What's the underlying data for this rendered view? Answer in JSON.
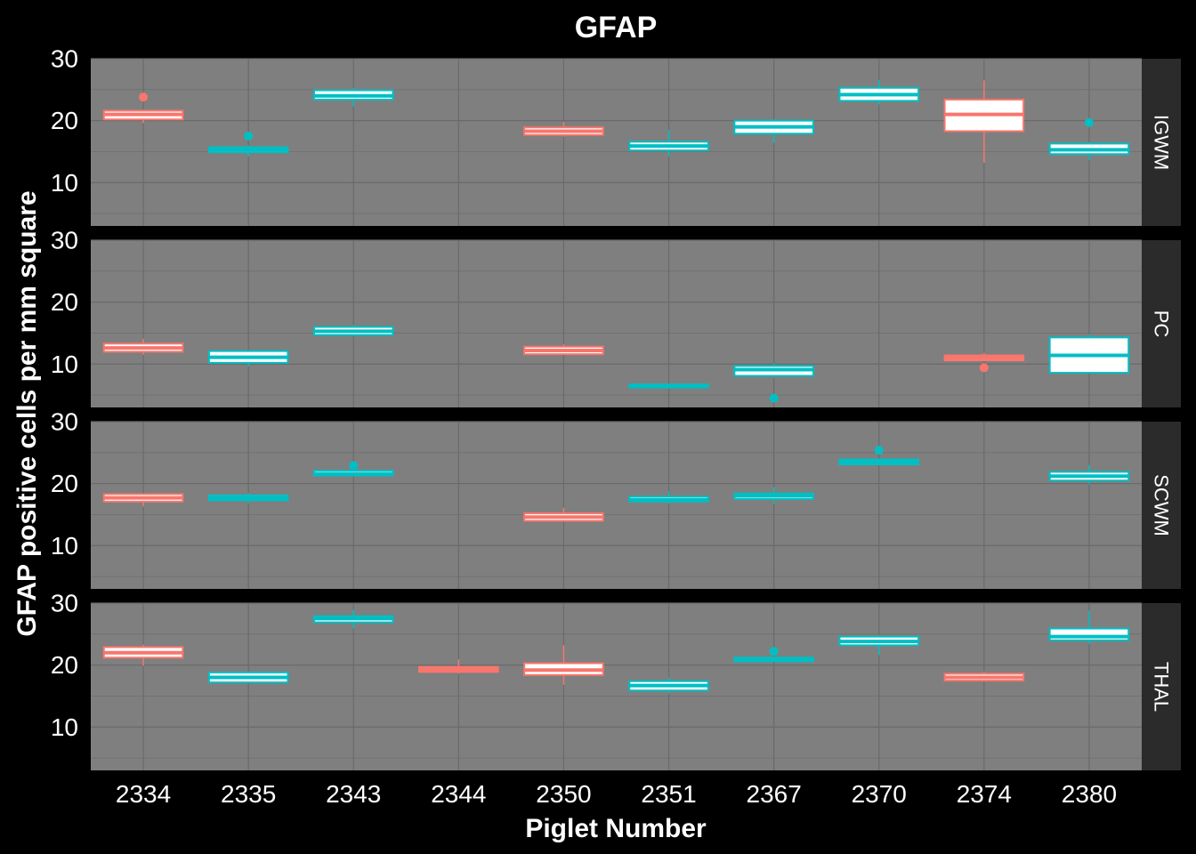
{
  "colors": {
    "page_background": "#000000",
    "panel_background": "#7f7f7f",
    "grid": "#6a6a6a",
    "strip_background": "#2b2b2b",
    "salmon": "#f8766d",
    "teal": "#00bfc4",
    "box_fill": "#ffffff"
  },
  "chart_data": {
    "type": "box",
    "title": "GFAP",
    "xlabel": "Piglet Number",
    "ylabel": "GFAP positive cells per mm square",
    "categories": [
      "2334",
      "2335",
      "2343",
      "2344",
      "2350",
      "2351",
      "2367",
      "2370",
      "2374",
      "2380"
    ],
    "ylim": [
      3,
      30
    ],
    "yticks": [
      10,
      20,
      30
    ],
    "grid": true,
    "facets": [
      {
        "label": "IGWM",
        "boxes": [
          {
            "category": "2334",
            "color": "salmon",
            "q1": 20.2,
            "median": 21.0,
            "q3": 21.6,
            "whisker_low": 19.6,
            "whisker_high": 21.8,
            "outliers": [
              23.8
            ]
          },
          {
            "category": "2335",
            "color": "teal",
            "q1": 14.9,
            "median": 15.3,
            "q3": 15.7,
            "whisker_low": 14.2,
            "whisker_high": 16.0,
            "outliers": [
              17.5
            ]
          },
          {
            "category": "2343",
            "color": "teal",
            "q1": 23.4,
            "median": 24.0,
            "q3": 24.9,
            "whisker_low": 22.3,
            "whisker_high": 25.3,
            "outliers": []
          },
          {
            "category": "2350",
            "color": "salmon",
            "q1": 17.7,
            "median": 18.3,
            "q3": 18.9,
            "whisker_low": 17.4,
            "whisker_high": 19.8,
            "outliers": []
          },
          {
            "category": "2351",
            "color": "teal",
            "q1": 15.2,
            "median": 15.9,
            "q3": 16.6,
            "whisker_low": 14.2,
            "whisker_high": 18.5,
            "outliers": []
          },
          {
            "category": "2367",
            "color": "teal",
            "q1": 17.9,
            "median": 19.0,
            "q3": 20.0,
            "whisker_low": 16.4,
            "whisker_high": 20.2,
            "outliers": []
          },
          {
            "category": "2370",
            "color": "teal",
            "q1": 23.2,
            "median": 24.2,
            "q3": 25.3,
            "whisker_low": 22.6,
            "whisker_high": 26.6,
            "outliers": []
          },
          {
            "category": "2374",
            "color": "salmon",
            "q1": 18.3,
            "median": 21.0,
            "q3": 23.4,
            "whisker_low": 13.2,
            "whisker_high": 26.5,
            "outliers": []
          },
          {
            "category": "2380",
            "color": "teal",
            "q1": 14.6,
            "median": 15.3,
            "q3": 16.3,
            "whisker_low": 13.6,
            "whisker_high": 16.5,
            "outliers": [
              19.7
            ]
          }
        ]
      },
      {
        "label": "PC",
        "boxes": [
          {
            "category": "2334",
            "color": "salmon",
            "q1": 12.0,
            "median": 12.6,
            "q3": 13.3,
            "whisker_low": 11.5,
            "whisker_high": 14.1,
            "outliers": []
          },
          {
            "category": "2335",
            "color": "teal",
            "q1": 10.2,
            "median": 11.1,
            "q3": 12.1,
            "whisker_low": 9.6,
            "whisker_high": 12.2,
            "outliers": []
          },
          {
            "category": "2343",
            "color": "teal",
            "q1": 14.7,
            "median": 15.3,
            "q3": 16.0,
            "whisker_low": 14.5,
            "whisker_high": 16.3,
            "outliers": []
          },
          {
            "category": "2350",
            "color": "salmon",
            "q1": 11.6,
            "median": 12.2,
            "q3": 12.8,
            "whisker_low": 11.6,
            "whisker_high": 13.2,
            "outliers": []
          },
          {
            "category": "2351",
            "color": "teal",
            "q1": 6.2,
            "median": 6.5,
            "q3": 6.7,
            "whisker_low": 6.2,
            "whisker_high": 6.8,
            "outliers": []
          },
          {
            "category": "2367",
            "color": "teal",
            "q1": 8.1,
            "median": 9.1,
            "q3": 9.7,
            "whisker_low": 7.8,
            "whisker_high": 10.1,
            "outliers": [
              4.5
            ]
          },
          {
            "category": "2374",
            "color": "salmon",
            "q1": 10.6,
            "median": 11.0,
            "q3": 11.4,
            "whisker_low": 10.5,
            "whisker_high": 11.8,
            "outliers": [
              9.4
            ]
          },
          {
            "category": "2380",
            "color": "teal",
            "q1": 8.6,
            "median": 11.4,
            "q3": 14.3,
            "whisker_low": 8.6,
            "whisker_high": 14.8,
            "outliers": []
          }
        ]
      },
      {
        "label": "SCWM",
        "boxes": [
          {
            "category": "2334",
            "color": "salmon",
            "q1": 17.1,
            "median": 17.7,
            "q3": 18.3,
            "whisker_low": 16.3,
            "whisker_high": 18.4,
            "outliers": []
          },
          {
            "category": "2335",
            "color": "teal",
            "q1": 17.3,
            "median": 17.7,
            "q3": 18.1,
            "whisker_low": 16.8,
            "whisker_high": 18.5,
            "outliers": []
          },
          {
            "category": "2343",
            "color": "teal",
            "q1": 21.3,
            "median": 21.6,
            "q3": 22.1,
            "whisker_low": 21.2,
            "whisker_high": 22.3,
            "outliers": [
              22.9
            ]
          },
          {
            "category": "2350",
            "color": "salmon",
            "q1": 14.0,
            "median": 14.6,
            "q3": 15.2,
            "whisker_low": 13.9,
            "whisker_high": 16.1,
            "outliers": []
          },
          {
            "category": "2351",
            "color": "teal",
            "q1": 17.1,
            "median": 17.4,
            "q3": 17.9,
            "whisker_low": 16.8,
            "whisker_high": 18.8,
            "outliers": []
          },
          {
            "category": "2367",
            "color": "teal",
            "q1": 17.5,
            "median": 18.0,
            "q3": 18.4,
            "whisker_low": 16.7,
            "whisker_high": 19.4,
            "outliers": []
          },
          {
            "category": "2370",
            "color": "teal",
            "q1": 23.1,
            "median": 23.5,
            "q3": 23.9,
            "whisker_low": 23.0,
            "whisker_high": 24.0,
            "outliers": [
              25.4
            ]
          },
          {
            "category": "2380",
            "color": "teal",
            "q1": 20.5,
            "median": 21.2,
            "q3": 21.9,
            "whisker_low": 19.9,
            "whisker_high": 23.0,
            "outliers": []
          }
        ]
      },
      {
        "label": "THAL",
        "boxes": [
          {
            "category": "2334",
            "color": "salmon",
            "q1": 21.2,
            "median": 22.0,
            "q3": 22.9,
            "whisker_low": 19.9,
            "whisker_high": 23.3,
            "outliers": []
          },
          {
            "category": "2335",
            "color": "teal",
            "q1": 17.2,
            "median": 18.0,
            "q3": 18.8,
            "whisker_low": 17.2,
            "whisker_high": 18.8,
            "outliers": []
          },
          {
            "category": "2343",
            "color": "teal",
            "q1": 26.9,
            "median": 27.5,
            "q3": 27.9,
            "whisker_low": 25.9,
            "whisker_high": 28.9,
            "outliers": []
          },
          {
            "category": "2344",
            "color": "salmon",
            "q1": 18.9,
            "median": 19.3,
            "q3": 19.7,
            "whisker_low": 18.6,
            "whisker_high": 20.9,
            "outliers": []
          },
          {
            "category": "2350",
            "color": "salmon",
            "q1": 18.4,
            "median": 19.2,
            "q3": 20.3,
            "whisker_low": 16.8,
            "whisker_high": 23.2,
            "outliers": []
          },
          {
            "category": "2351",
            "color": "teal",
            "q1": 15.9,
            "median": 16.7,
            "q3": 17.4,
            "whisker_low": 15.4,
            "whisker_high": 18.0,
            "outliers": []
          },
          {
            "category": "2367",
            "color": "teal",
            "q1": 20.6,
            "median": 20.9,
            "q3": 21.2,
            "whisker_low": 20.6,
            "whisker_high": 21.2,
            "outliers": [
              22.2
            ]
          },
          {
            "category": "2370",
            "color": "teal",
            "q1": 23.2,
            "median": 23.8,
            "q3": 24.6,
            "whisker_low": 21.6,
            "whisker_high": 24.8,
            "outliers": []
          },
          {
            "category": "2374",
            "color": "salmon",
            "q1": 17.5,
            "median": 18.0,
            "q3": 18.6,
            "whisker_low": 17.4,
            "whisker_high": 18.9,
            "outliers": []
          },
          {
            "category": "2380",
            "color": "teal",
            "q1": 24.0,
            "median": 24.6,
            "q3": 25.9,
            "whisker_low": 23.4,
            "whisker_high": 28.8,
            "outliers": []
          }
        ]
      }
    ]
  }
}
